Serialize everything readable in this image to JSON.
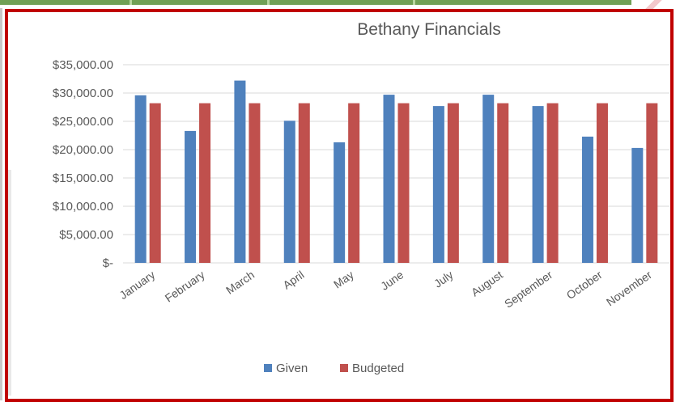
{
  "chart_data": {
    "type": "bar",
    "title": "Bethany Financials",
    "categories": [
      "January",
      "February",
      "March",
      "April",
      "May",
      "June",
      "July",
      "August",
      "September",
      "October",
      "November"
    ],
    "series": [
      {
        "name": "Given",
        "color": "#4f81bd",
        "values": [
          29600,
          23300,
          32200,
          25100,
          21300,
          29700,
          27700,
          29700,
          27700,
          22300,
          20300
        ]
      },
      {
        "name": "Budgeted",
        "color": "#c0504d",
        "values": [
          28200,
          28200,
          28200,
          28200,
          28200,
          28200,
          28200,
          28200,
          28200,
          28200,
          28200
        ]
      }
    ],
    "ylim": [
      0,
      35000
    ],
    "yticks": [
      0,
      5000,
      10000,
      15000,
      20000,
      25000,
      30000,
      35000
    ],
    "ytick_labels": [
      "$-",
      "$5,000.00",
      "$10,000.00",
      "$15,000.00",
      "$20,000.00",
      "$25,000.00",
      "$30,000.00",
      "$35,000.00"
    ],
    "grid": true,
    "legend": "bottom"
  }
}
